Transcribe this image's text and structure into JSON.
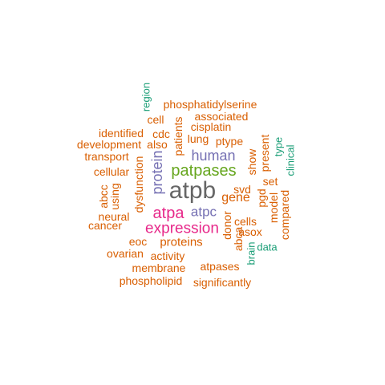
{
  "palette": {
    "orange": "#d95f02",
    "teal": "#1b9e77",
    "purple": "#7570b3",
    "magenta": "#e7298a",
    "green": "#66a61e",
    "gray": "#666666"
  },
  "words": [
    {
      "text": "atpb",
      "color": "#666666",
      "vertical": false
    },
    {
      "text": "patpases",
      "color": "#66a61e",
      "vertical": false
    },
    {
      "text": "expression",
      "color": "#e7298a",
      "vertical": false
    },
    {
      "text": "atpa",
      "color": "#e7298a",
      "vertical": false
    },
    {
      "text": "human",
      "color": "#7570b3",
      "vertical": false
    },
    {
      "text": "atpc",
      "color": "#7570b3",
      "vertical": false
    },
    {
      "text": "protein",
      "color": "#7570b3",
      "vertical": true
    },
    {
      "text": "phosphatidylserine",
      "color": "#d95f02",
      "vertical": false
    },
    {
      "text": "associated",
      "color": "#d95f02",
      "vertical": false
    },
    {
      "text": "cell",
      "color": "#d95f02",
      "vertical": false
    },
    {
      "text": "cisplatin",
      "color": "#d95f02",
      "vertical": false
    },
    {
      "text": "identified",
      "color": "#d95f02",
      "vertical": false
    },
    {
      "text": "cdc",
      "color": "#d95f02",
      "vertical": false
    },
    {
      "text": "development",
      "color": "#d95f02",
      "vertical": false
    },
    {
      "text": "also",
      "color": "#d95f02",
      "vertical": false
    },
    {
      "text": "lung",
      "color": "#d95f02",
      "vertical": false
    },
    {
      "text": "ptype",
      "color": "#d95f02",
      "vertical": false
    },
    {
      "text": "transport",
      "color": "#d95f02",
      "vertical": false
    },
    {
      "text": "cellular",
      "color": "#d95f02",
      "vertical": false
    },
    {
      "text": "set",
      "color": "#d95f02",
      "vertical": false
    },
    {
      "text": "svd",
      "color": "#d95f02",
      "vertical": false
    },
    {
      "text": "gene",
      "color": "#d95f02",
      "vertical": false
    },
    {
      "text": "cells",
      "color": "#d95f02",
      "vertical": false
    },
    {
      "text": "neural",
      "color": "#d95f02",
      "vertical": false
    },
    {
      "text": "cancer",
      "color": "#d95f02",
      "vertical": false
    },
    {
      "text": "asox",
      "color": "#d95f02",
      "vertical": false
    },
    {
      "text": "eoc",
      "color": "#d95f02",
      "vertical": false
    },
    {
      "text": "proteins",
      "color": "#d95f02",
      "vertical": false
    },
    {
      "text": "data",
      "color": "#1b9e77",
      "vertical": false
    },
    {
      "text": "ovarian",
      "color": "#d95f02",
      "vertical": false
    },
    {
      "text": "activity",
      "color": "#d95f02",
      "vertical": false
    },
    {
      "text": "membrane",
      "color": "#d95f02",
      "vertical": false
    },
    {
      "text": "atpases",
      "color": "#d95f02",
      "vertical": false
    },
    {
      "text": "phospholipid",
      "color": "#d95f02",
      "vertical": false
    },
    {
      "text": "significantly",
      "color": "#d95f02",
      "vertical": false
    },
    {
      "text": "region",
      "color": "#1b9e77",
      "vertical": true
    },
    {
      "text": "patients",
      "color": "#d95f02",
      "vertical": true
    },
    {
      "text": "dysfunction",
      "color": "#d95f02",
      "vertical": true
    },
    {
      "text": "abcc",
      "color": "#d95f02",
      "vertical": true
    },
    {
      "text": "using",
      "color": "#d95f02",
      "vertical": true
    },
    {
      "text": "show",
      "color": "#d95f02",
      "vertical": true
    },
    {
      "text": "present",
      "color": "#d95f02",
      "vertical": true
    },
    {
      "text": "type",
      "color": "#1b9e77",
      "vertical": true
    },
    {
      "text": "clinical",
      "color": "#1b9e77",
      "vertical": true
    },
    {
      "text": "pgd",
      "color": "#d95f02",
      "vertical": true
    },
    {
      "text": "model",
      "color": "#d95f02",
      "vertical": true
    },
    {
      "text": "compared",
      "color": "#d95f02",
      "vertical": true
    },
    {
      "text": "donor",
      "color": "#d95f02",
      "vertical": true
    },
    {
      "text": "abca",
      "color": "#d95f02",
      "vertical": true
    },
    {
      "text": "brain",
      "color": "#1b9e77",
      "vertical": true
    }
  ]
}
